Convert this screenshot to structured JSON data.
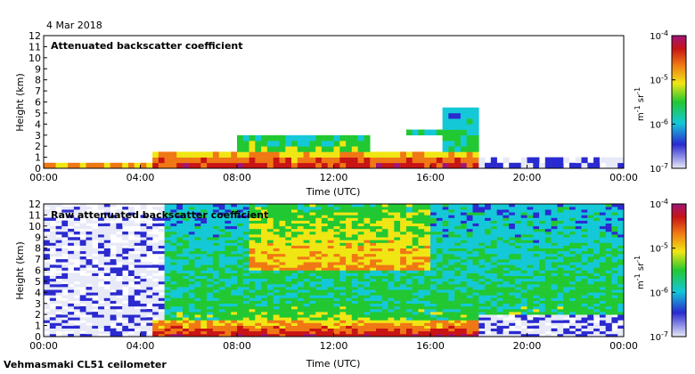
{
  "date": "4 Mar 2018",
  "footer": "Vehmasmaki CL51 ceilometer",
  "colors": {
    "bg_low": "#e8eaf8",
    "blue": "#2a2ad0",
    "cyan": "#14c8d8",
    "green": "#22c832",
    "yellow": "#f0e614",
    "orange": "#f07814",
    "red": "#c81414",
    "purple": "#a01478"
  },
  "chart_data": [
    {
      "type": "heatmap",
      "title": "Attenuated backscatter coefficient",
      "xlabel": "Time (UTC)",
      "ylabel": "Height (km)",
      "xticks": [
        "00:00",
        "04:00",
        "08:00",
        "12:00",
        "16:00",
        "20:00",
        "00:00"
      ],
      "x_range_hours": [
        0,
        24
      ],
      "yticks": [
        "0",
        "1",
        "2",
        "3",
        "4",
        "5",
        "6",
        "7",
        "8",
        "9",
        "10",
        "11",
        "12"
      ],
      "ylim_km": [
        0,
        12
      ],
      "colorbar": {
        "ticks": [
          "10",
          "10",
          "10",
          "10"
        ],
        "tick_exponents": [
          "-4",
          "-5",
          "-6",
          "-7"
        ],
        "label": "m",
        "label_exp1": "-1",
        "label_mid": " sr",
        "label_exp2": "-1"
      },
      "features": [
        {
          "name": "surface-layer",
          "t0": 0,
          "t1": 4.6,
          "h0": 0.0,
          "h1": 0.7,
          "level": 0.75
        },
        {
          "name": "surface-layer",
          "t0": 4.6,
          "t1": 18.0,
          "h0": 0.0,
          "h1": 1.6,
          "level": 0.85
        },
        {
          "name": "cloud-base",
          "t0": 8.0,
          "t1": 13.6,
          "h0": 1.6,
          "h1": 3.2,
          "level": 0.5
        },
        {
          "name": "cloud-top",
          "t0": 15.0,
          "t1": 17.5,
          "h0": 2.9,
          "h1": 3.4,
          "level": 0.55
        },
        {
          "name": "precip-streaks",
          "t0": 16.5,
          "t1": 18.0,
          "h0": 0.3,
          "h1": 5.5,
          "level": 0.45
        },
        {
          "name": "clear-air",
          "t0": 18.0,
          "t1": 24.0,
          "h0": 0.0,
          "h1": 0.8,
          "level": 0.15
        }
      ]
    },
    {
      "type": "heatmap",
      "title": "Raw attenuated backscatter coefficient",
      "xlabel": "Time (UTC)",
      "ylabel": "Height (km)",
      "xticks": [
        "00:00",
        "04:00",
        "08:00",
        "12:00",
        "16:00",
        "20:00",
        "00:00"
      ],
      "x_range_hours": [
        0,
        24
      ],
      "yticks": [
        "0",
        "1",
        "2",
        "3",
        "4",
        "5",
        "6",
        "7",
        "8",
        "9",
        "10",
        "11",
        "12"
      ],
      "ylim_km": [
        0,
        12
      ],
      "colorbar": {
        "ticks": [
          "10",
          "10",
          "10",
          "10"
        ],
        "tick_exponents": [
          "-4",
          "-5",
          "-6",
          "-7"
        ],
        "label": "m",
        "label_exp1": "-1",
        "label_mid": " sr",
        "label_exp2": "-1"
      },
      "features": [
        {
          "name": "noise-field",
          "t0": 0,
          "t1": 24,
          "h0": 0,
          "h1": 12,
          "level": 0.45
        },
        {
          "name": "noise-high",
          "t0": 8.5,
          "t1": 16,
          "h0": 6,
          "h1": 12,
          "level": 0.65
        },
        {
          "name": "low-clear",
          "t0": 0,
          "t1": 5,
          "h0": 0,
          "h1": 12,
          "level": 0.1
        },
        {
          "name": "surface-layer",
          "t0": 4.6,
          "t1": 18.0,
          "h0": 0.0,
          "h1": 1.6,
          "level": 0.85
        },
        {
          "name": "cloud-base",
          "t0": 8.0,
          "t1": 13.6,
          "h0": 1.6,
          "h1": 3.2,
          "level": 0.5
        },
        {
          "name": "clear-evening",
          "t0": 18,
          "t1": 24,
          "h0": 0,
          "h1": 2,
          "level": 0.12
        }
      ]
    }
  ]
}
